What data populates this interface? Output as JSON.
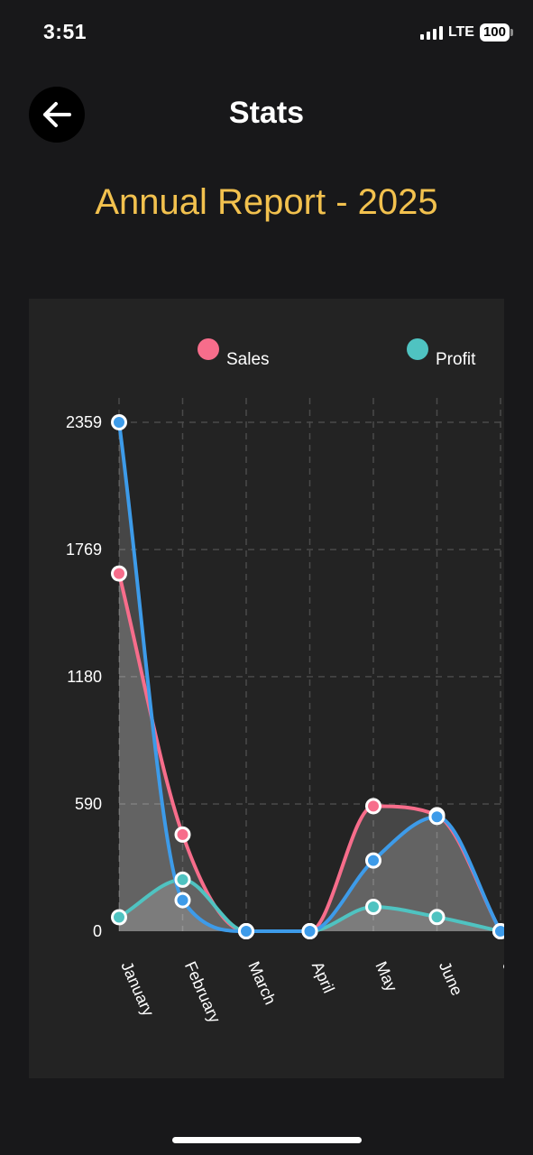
{
  "status_bar": {
    "time": "3:51",
    "network": "LTE",
    "battery": "100"
  },
  "header": {
    "title": "Stats",
    "back_icon": "arrow-left-icon"
  },
  "report_title": "Annual Report - 2025",
  "colors": {
    "sales": "#f76d8b",
    "profit": "#4fc3c1",
    "third_series": "#3d9be9",
    "title_accent": "#f2c14e",
    "background": "#18181a",
    "card": "#232323"
  },
  "chart_data": {
    "type": "area",
    "title": "Annual Report - 2025",
    "categories": [
      "January",
      "February",
      "March",
      "April",
      "May",
      "June",
      "J"
    ],
    "yticks": [
      0,
      590,
      1180,
      1769,
      2359
    ],
    "ylim": [
      0,
      2359
    ],
    "grid": true,
    "legend": [
      "Sales",
      "Profit"
    ],
    "legend_position": "top",
    "series": [
      {
        "name": "Sales",
        "color": "#f76d8b",
        "values": [
          1658,
          448,
          0,
          0,
          580,
          538,
          0
        ]
      },
      {
        "name": "Profit",
        "color": "#4fc3c1",
        "values": [
          65,
          239,
          0,
          0,
          113,
          66,
          0
        ]
      },
      {
        "name": "",
        "color": "#3d9be9",
        "values": [
          2359,
          144,
          0,
          0,
          328,
          530,
          0
        ]
      }
    ]
  }
}
